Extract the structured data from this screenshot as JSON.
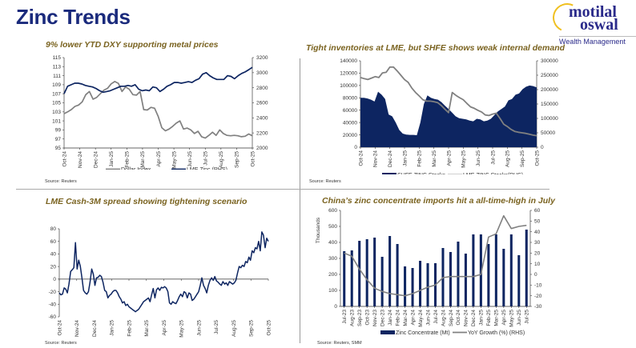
{
  "header": {
    "title": "Zinc Trends",
    "logo": {
      "line1": "motilal",
      "line2": "oswal",
      "sub": "Wealth Management"
    }
  },
  "colors": {
    "navy": "#0d2561",
    "gray": "#808080",
    "title_gold": "#7a6320",
    "header_blue": "#1a2a7c"
  },
  "chart_data": [
    {
      "id": "dxy-zinc",
      "type": "line",
      "title": "9% lower YTD DXY supporting metal prices",
      "source": "Source: Reuters",
      "xlabel": "",
      "ylabel": "",
      "x_ticks": [
        "Oct-24",
        "Nov-24",
        "Dec-24",
        "Jan-25",
        "Feb-25",
        "Mar-25",
        "Apr-25",
        "May-25",
        "Jun-25",
        "Jul-25",
        "Aug-25",
        "Sep-25",
        "Oct-25"
      ],
      "y_left": {
        "min": 95,
        "max": 115,
        "ticks": [
          95,
          97,
          99,
          101,
          103,
          105,
          107,
          109,
          111,
          113,
          115
        ]
      },
      "y_right": {
        "min": 2000,
        "max": 3200,
        "ticks": [
          2000,
          2200,
          2400,
          2600,
          2800,
          3000,
          3200
        ]
      },
      "legend": "bottom",
      "series": [
        {
          "name": "Dollar Index",
          "axis": "left",
          "color": "#808080",
          "values": [
            102.6,
            103.0,
            103.5,
            104.2,
            104.5,
            105.2,
            106.8,
            107.5,
            105.8,
            106.2,
            107.0,
            107.8,
            108.2,
            109.2,
            109.7,
            109.3,
            107.5,
            108.5,
            108.0,
            106.8,
            106.7,
            107.5,
            103.5,
            103.4,
            104.0,
            103.8,
            102.0,
            99.5,
            98.8,
            99.2,
            99.8,
            100.5,
            101.0,
            99.2,
            99.4,
            99.0,
            98.2,
            98.7,
            97.5,
            97.2,
            97.8,
            98.5,
            97.8,
            99.0,
            98.2,
            97.8,
            97.7,
            97.8,
            97.7,
            97.5,
            97.6,
            98.1,
            97.7
          ]
        },
        {
          "name": "LME Zinc (RHS)",
          "axis": "right",
          "color": "#0d2561",
          "values": [
            2720,
            2820,
            2840,
            2860,
            2860,
            2850,
            2830,
            2820,
            2810,
            2790,
            2760,
            2740,
            2750,
            2760,
            2780,
            2800,
            2820,
            2820,
            2830,
            2820,
            2840,
            2780,
            2760,
            2770,
            2760,
            2810,
            2800,
            2750,
            2780,
            2820,
            2840,
            2870,
            2870,
            2860,
            2870,
            2880,
            2870,
            2900,
            2920,
            2980,
            3000,
            2960,
            2930,
            2910,
            2910,
            2910,
            2960,
            2950,
            2920,
            2960,
            2990,
            3010,
            3040,
            3070
          ]
        }
      ]
    },
    {
      "id": "inventories",
      "type": "area",
      "title": "Tight inventories at LME, but SHFE shows weak internal demand",
      "source": "Source: Reuters",
      "x_ticks": [
        "Oct-24",
        "Nov-24",
        "Dec-24",
        "Jan-25",
        "Feb-25",
        "Mar-25",
        "Apr-25",
        "May-25",
        "Jun-25",
        "Jul-25",
        "Aug-25",
        "Sep-25",
        "Oct-25"
      ],
      "y_left": {
        "min": 0,
        "max": 140000,
        "ticks": [
          0,
          20000,
          40000,
          60000,
          80000,
          100000,
          120000,
          140000
        ]
      },
      "y_right": {
        "min": 0,
        "max": 300000,
        "ticks": [
          0,
          50000,
          100000,
          150000,
          200000,
          250000,
          300000
        ]
      },
      "legend": "bottom",
      "series": [
        {
          "name": "SHFE ZINC Stocks",
          "axis": "left",
          "kind": "area",
          "color": "#0d2561",
          "values": [
            80000,
            80000,
            79000,
            77000,
            74000,
            90000,
            85000,
            78000,
            53000,
            50000,
            40000,
            28000,
            22000,
            20500,
            20000,
            20000,
            19500,
            40000,
            70000,
            84000,
            80000,
            78000,
            77000,
            73000,
            67000,
            62000,
            56000,
            50000,
            47000,
            46000,
            45000,
            43000,
            42000,
            46000,
            45000,
            42000,
            43000,
            46000,
            52000,
            58000,
            62000,
            66000,
            76000,
            78000,
            85000,
            87000,
            94000,
            98000,
            100000,
            99000,
            97000
          ]
        },
        {
          "name": "LME ZINC  Stocks(RHS)",
          "axis": "right",
          "kind": "line",
          "color": "#808080",
          "values": [
            242000,
            238000,
            235000,
            240000,
            245000,
            242000,
            258000,
            260000,
            278000,
            278000,
            265000,
            250000,
            235000,
            225000,
            205000,
            190000,
            178000,
            165000,
            160000,
            160000,
            158000,
            155000,
            145000,
            132000,
            120000,
            190000,
            180000,
            172000,
            165000,
            152000,
            140000,
            135000,
            128000,
            122000,
            112000,
            110000,
            115000,
            118000,
            100000,
            80000,
            72000,
            62000,
            55000,
            52000,
            50000,
            48000,
            45000,
            42000,
            40000
          ]
        }
      ]
    },
    {
      "id": "cash-3m",
      "type": "line",
      "title": "LME Cash-3M spread showing tightening scenario",
      "source": "Source: Reuters",
      "x_ticks": [
        "Oct-24",
        "Nov-24",
        "Dec-24",
        "Jan-25",
        "Feb-25",
        "Mar-25",
        "Apr-25",
        "May-25",
        "Jun-25",
        "Jul-25",
        "Aug-25",
        "Sep-25",
        "Oct-25"
      ],
      "y_left": {
        "min": -60,
        "max": 80,
        "ticks": [
          -60,
          -40,
          -20,
          0,
          20,
          40,
          60,
          80
        ]
      },
      "legend": "none",
      "series": [
        {
          "name": "LME Cash-3M spread",
          "axis": "left",
          "color": "#0d2561",
          "values": [
            -22,
            -25,
            -24,
            -14,
            -16,
            -22,
            -8,
            12,
            15,
            18,
            58,
            16,
            30,
            20,
            2,
            -18,
            -22,
            -24,
            -20,
            -5,
            16,
            8,
            -10,
            2,
            3,
            6,
            4,
            -5,
            -18,
            -20,
            -30,
            -26,
            -24,
            -20,
            -18,
            -18,
            -22,
            -28,
            -32,
            -38,
            -36,
            -42,
            -40,
            -44,
            -46,
            -48,
            -50,
            -52,
            -50,
            -48,
            -44,
            -40,
            -36,
            -34,
            -32,
            -30,
            -36,
            -25,
            -15,
            -30,
            -17,
            -14,
            -18,
            -13,
            -14,
            -12,
            -14,
            -20,
            -38,
            -40,
            -36,
            -38,
            -39,
            -34,
            -28,
            -24,
            -28,
            -20,
            -22,
            -30,
            -22,
            -24,
            -34,
            -32,
            -28,
            -24,
            -20,
            -10,
            2,
            -10,
            -15,
            -22,
            -10,
            -2,
            2,
            -2,
            4,
            -3,
            -5,
            -8,
            -10,
            -4,
            -8,
            -6,
            -10,
            -4,
            -6,
            -8,
            -6,
            -2,
            10,
            20,
            18,
            22,
            20,
            28,
            26,
            35,
            30,
            45,
            42,
            50,
            48,
            60,
            45,
            75,
            70,
            50,
            65,
            60
          ]
        }
      ]
    },
    {
      "id": "china-imports",
      "type": "bar",
      "title": "China’s zinc concentrate imports hit a all-time-high in July",
      "source": "Source: Reuters, SMM",
      "categories": [
        "Jul-23",
        "Aug-23",
        "Sep-23",
        "Oct-23",
        "Nov-23",
        "Dec-23",
        "Jan-24",
        "Feb-24",
        "Mar-24",
        "Apr-24",
        "May-24",
        "Jun-24",
        "Jul-24",
        "Aug-24",
        "Sep-24",
        "Oct-24",
        "Nov-24",
        "Dec-24",
        "Jan-25",
        "Feb-25",
        "Mar-25",
        "Apr-25",
        "May-25",
        "Jun-25",
        "Jul-25"
      ],
      "ylabel": "Thousands",
      "y_left": {
        "min": 0,
        "max": 600,
        "ticks": [
          0,
          100,
          200,
          300,
          400,
          500,
          600
        ]
      },
      "y_right": {
        "min": -30,
        "max": 60,
        "ticks": [
          -30,
          -20,
          -10,
          0,
          10,
          20,
          30,
          40,
          50,
          60
        ]
      },
      "legend": "bottom",
      "series": [
        {
          "name": "Zinc Concentrate (Mt)",
          "axis": "left",
          "kind": "bar",
          "color": "#0d2561",
          "values": [
            345,
            350,
            410,
            420,
            430,
            310,
            440,
            390,
            250,
            240,
            285,
            270,
            270,
            365,
            340,
            405,
            330,
            450,
            450,
            390,
            450,
            360,
            450,
            320,
            480
          ]
        },
        {
          "name": "YoY Growth (%) (RHS)",
          "axis": "right",
          "kind": "line",
          "color": "#808080",
          "values": [
            20,
            17,
            5,
            -5,
            -13,
            -16,
            -18,
            -19,
            -20,
            -18,
            -15,
            -12,
            -10,
            -3,
            -2,
            -2,
            -2,
            -2,
            0,
            35,
            38,
            55,
            43,
            45,
            46
          ]
        }
      ]
    }
  ]
}
